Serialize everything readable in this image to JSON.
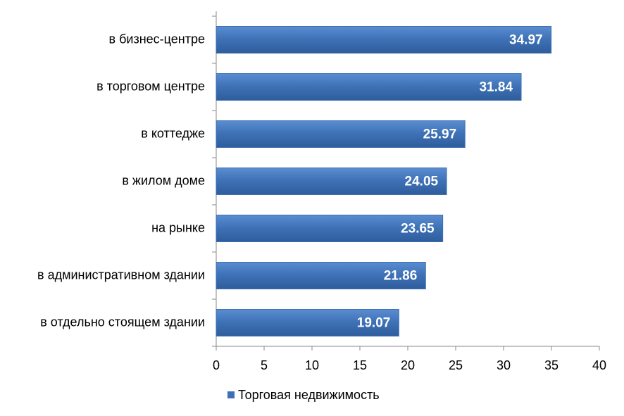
{
  "chart_data": {
    "type": "bar",
    "orientation": "horizontal",
    "categories": [
      "в бизнес-центре",
      "в торговом центре",
      "в коттедже",
      "в жилом доме",
      "на рынке",
      "в административном здании",
      "в отдельно стоящем здании"
    ],
    "series": [
      {
        "name": "Торговая недвижимость",
        "color": "#3d70b5",
        "values": [
          34.97,
          31.84,
          25.97,
          24.05,
          23.65,
          21.86,
          19.07
        ]
      }
    ],
    "xlim": [
      0,
      40
    ],
    "xticks": [
      0,
      5,
      10,
      15,
      20,
      25,
      30,
      35,
      40
    ],
    "grid": false,
    "legend": "bottom"
  }
}
